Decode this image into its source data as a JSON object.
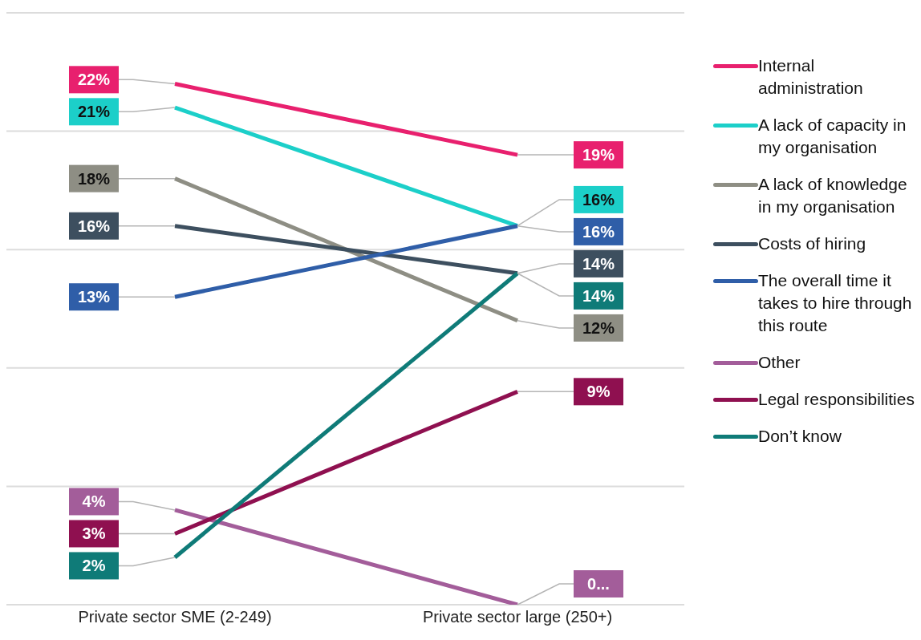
{
  "chart_data": {
    "type": "line",
    "categories": [
      "Private sector SME (2-249)",
      "Private sector large (250+)"
    ],
    "ylim": [
      0,
      25
    ],
    "yticks": [
      {
        "value": 0,
        "label": null
      },
      {
        "value": 5,
        "label": null
      },
      {
        "value": 10,
        "label": null
      },
      {
        "value": 15,
        "label": null
      },
      {
        "value": 20,
        "label": null
      },
      {
        "value": 25,
        "label": null
      }
    ],
    "grid": "y",
    "tick_labels": "x",
    "legend": "right",
    "series": [
      {
        "name": "Internal administration",
        "color": "#e8206e",
        "values": [
          22,
          19
        ],
        "value_labels": [
          "22%",
          "19%"
        ]
      },
      {
        "name": "A lack of capacity in my organisation",
        "color": "#1ccfc9",
        "values": [
          21,
          16
        ],
        "value_labels": [
          "21%",
          "16%"
        ]
      },
      {
        "name": "A lack of knowledge in my organisation",
        "color": "#8e8e84",
        "values": [
          18,
          12
        ],
        "value_labels": [
          "18%",
          "12%"
        ]
      },
      {
        "name": "Costs of hiring",
        "color": "#3d4f5f",
        "values": [
          16,
          14
        ],
        "value_labels": [
          "16%",
          "14%"
        ]
      },
      {
        "name": "The overall time it takes to hire through this route",
        "color": "#2f5ea8",
        "values": [
          13,
          16
        ],
        "value_labels": [
          "13%",
          "16%"
        ]
      },
      {
        "name": "Other",
        "color": "#a35d9a",
        "values": [
          4,
          0
        ],
        "value_labels": [
          "4%",
          "0..."
        ]
      },
      {
        "name": "Legal responsibilities",
        "color": "#8f1050",
        "values": [
          3,
          9
        ],
        "value_labels": [
          "3%",
          "9%"
        ]
      },
      {
        "name": "Don’t know",
        "color": "#0f7b78",
        "values": [
          2,
          14
        ],
        "value_labels": [
          "2%",
          "14%"
        ]
      }
    ]
  }
}
